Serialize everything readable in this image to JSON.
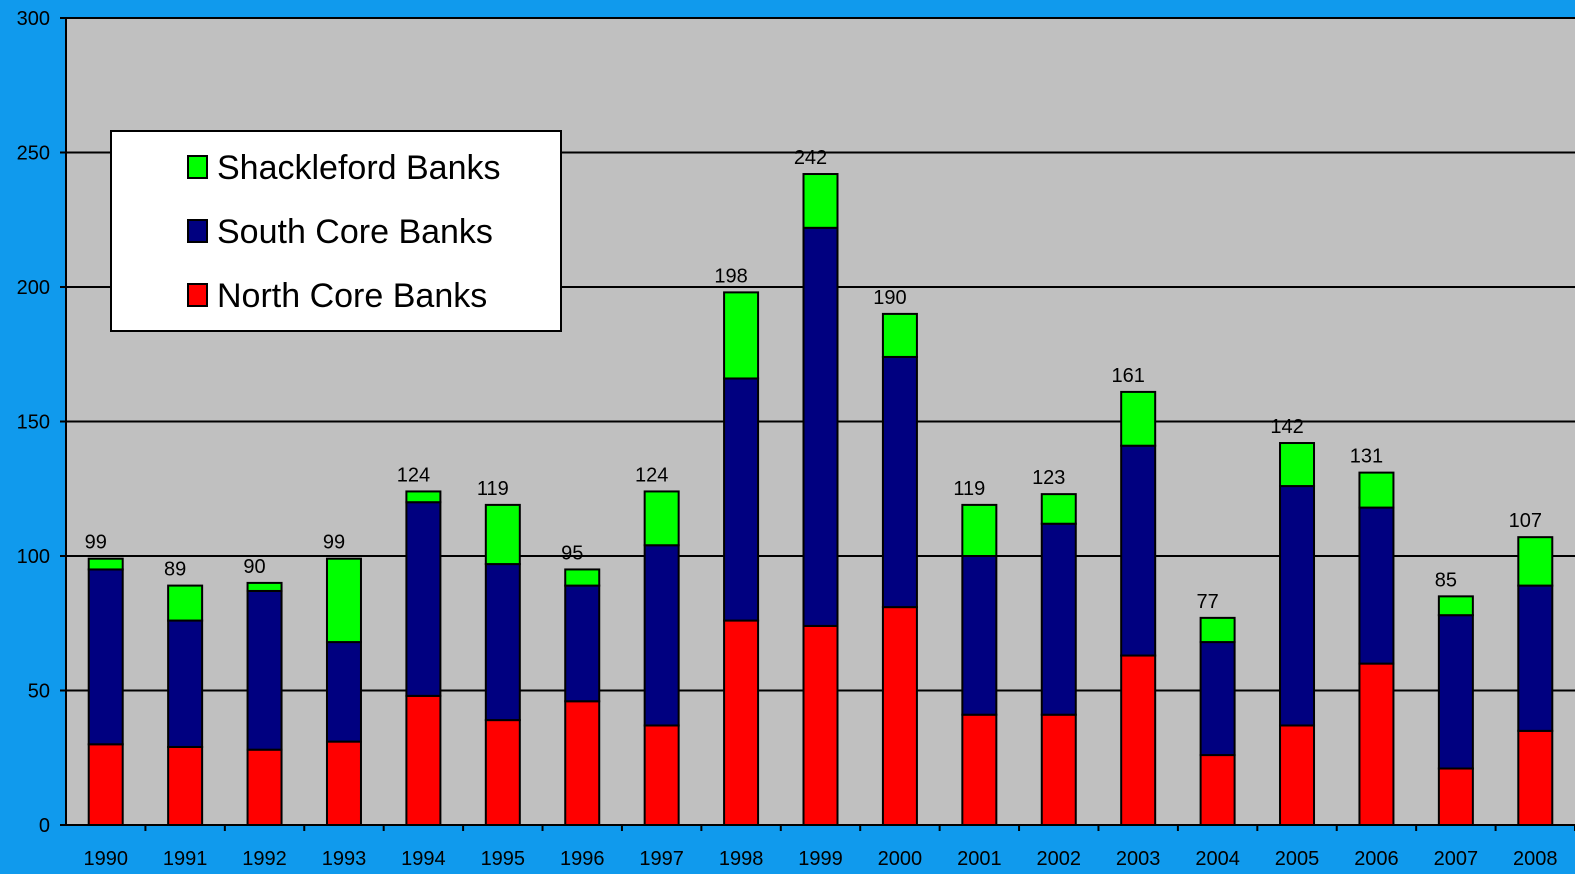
{
  "chart_data": {
    "type": "bar",
    "stacked": true,
    "categories": [
      "1990",
      "1991",
      "1992",
      "1993",
      "1994",
      "1995",
      "1996",
      "1997",
      "1998",
      "1999",
      "2000",
      "2001",
      "2002",
      "2003",
      "2004",
      "2005",
      "2006",
      "2007",
      "2008"
    ],
    "series": [
      {
        "name": "North Core Banks",
        "color": "#FF0000",
        "values": [
          30,
          29,
          28,
          31,
          48,
          39,
          46,
          37,
          76,
          74,
          81,
          41,
          41,
          63,
          26,
          37,
          60,
          21,
          35
        ]
      },
      {
        "name": "South Core Banks",
        "color": "#000080",
        "values": [
          65,
          47,
          59,
          37,
          72,
          58,
          43,
          67,
          90,
          148,
          93,
          59,
          71,
          78,
          42,
          89,
          58,
          57,
          54
        ]
      },
      {
        "name": "Shackleford Banks",
        "color": "#00FF00",
        "values": [
          4,
          13,
          3,
          31,
          4,
          22,
          6,
          20,
          32,
          20,
          16,
          19,
          11,
          20,
          9,
          16,
          13,
          7,
          18
        ]
      }
    ],
    "totals": [
      99,
      89,
      90,
      99,
      124,
      119,
      95,
      124,
      198,
      242,
      190,
      119,
      123,
      161,
      77,
      142,
      131,
      85,
      107
    ],
    "ylim": [
      0,
      300
    ],
    "yticks": [
      0,
      50,
      100,
      150,
      200,
      250,
      300
    ],
    "grid": true,
    "legend_placement": "top-left",
    "legend_order": [
      "Shackleford Banks",
      "South Core Banks",
      "North Core Banks"
    ],
    "plot_background": "#C0C0C0",
    "page_background": "#109AED"
  }
}
